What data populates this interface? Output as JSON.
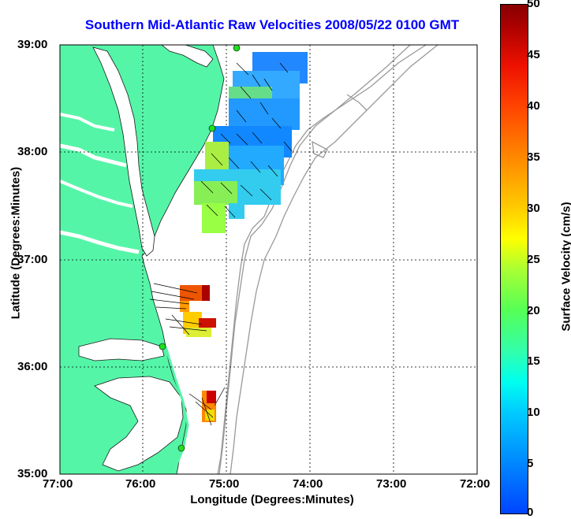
{
  "title": "Southern Mid-Atlantic Raw Velocities 2008/05/22 0100 GMT",
  "xlabel": "Longitude (Degrees:Minutes)",
  "ylabel": "Latitude (Degrees:Minutes)",
  "x_ticks": [
    "77:00",
    "76:00",
    "75:00",
    "74:00",
    "73:00",
    "72:00"
  ],
  "y_ticks": [
    "39:00",
    "38:00",
    "37:00",
    "36:00",
    "35:00"
  ],
  "colorbar": {
    "title": "Surface Velocity (cm/s)",
    "ticks": [
      "50",
      "45",
      "40",
      "35",
      "30",
      "25",
      "20",
      "15",
      "10",
      "5",
      "0"
    ]
  },
  "colors": {
    "land": "#55f5a8",
    "ocean": "#ffffff",
    "bathymetry": "#999999",
    "title": "#0000ff"
  }
}
